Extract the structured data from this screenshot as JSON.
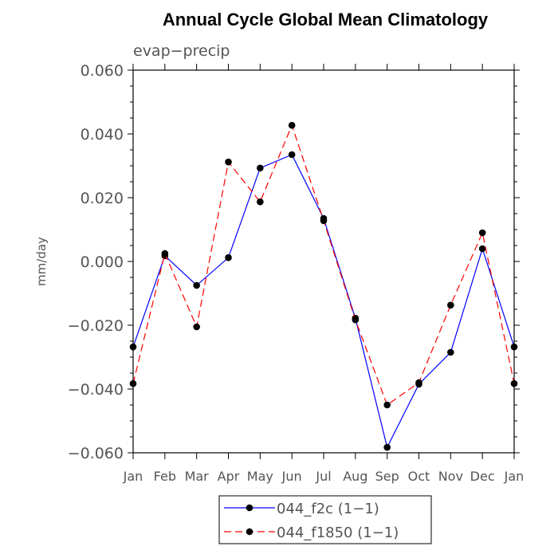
{
  "chart_data": {
    "type": "line",
    "title": "Annual Cycle Global Mean Climatology",
    "subtitle": "evap−precip",
    "xlabel": "",
    "ylabel": "mm/day",
    "categories": [
      "Jan",
      "Feb",
      "Mar",
      "Apr",
      "May",
      "Jun",
      "Jul",
      "Aug",
      "Sep",
      "Oct",
      "Nov",
      "Dec",
      "Jan"
    ],
    "ylim": [
      -0.06,
      0.06
    ],
    "yticks": [
      0.06,
      0.04,
      0.02,
      0.0,
      -0.02,
      -0.04,
      -0.06
    ],
    "ytick_labels": [
      "0.060",
      "0.040",
      "0.020",
      "0.000",
      "−0.020",
      "−0.040",
      "−0.060"
    ],
    "grid": false,
    "legend_position": "bottom",
    "series": [
      {
        "name": "044_f2c (1−1)",
        "color": "#0000ff",
        "dash": "solid",
        "values": [
          -0.0268,
          0.0018,
          -0.0075,
          0.0012,
          0.0293,
          0.0335,
          0.0135,
          -0.0178,
          -0.0583,
          -0.0385,
          -0.0285,
          0.004,
          -0.0268
        ]
      },
      {
        "name": "044_f1850 (1−1)",
        "color": "#ff0000",
        "dash": "dashed",
        "values": [
          -0.0383,
          0.0025,
          -0.0205,
          0.0312,
          0.0187,
          0.0427,
          0.0128,
          -0.0183,
          -0.045,
          -0.038,
          -0.0137,
          0.009,
          -0.0383
        ]
      }
    ]
  }
}
